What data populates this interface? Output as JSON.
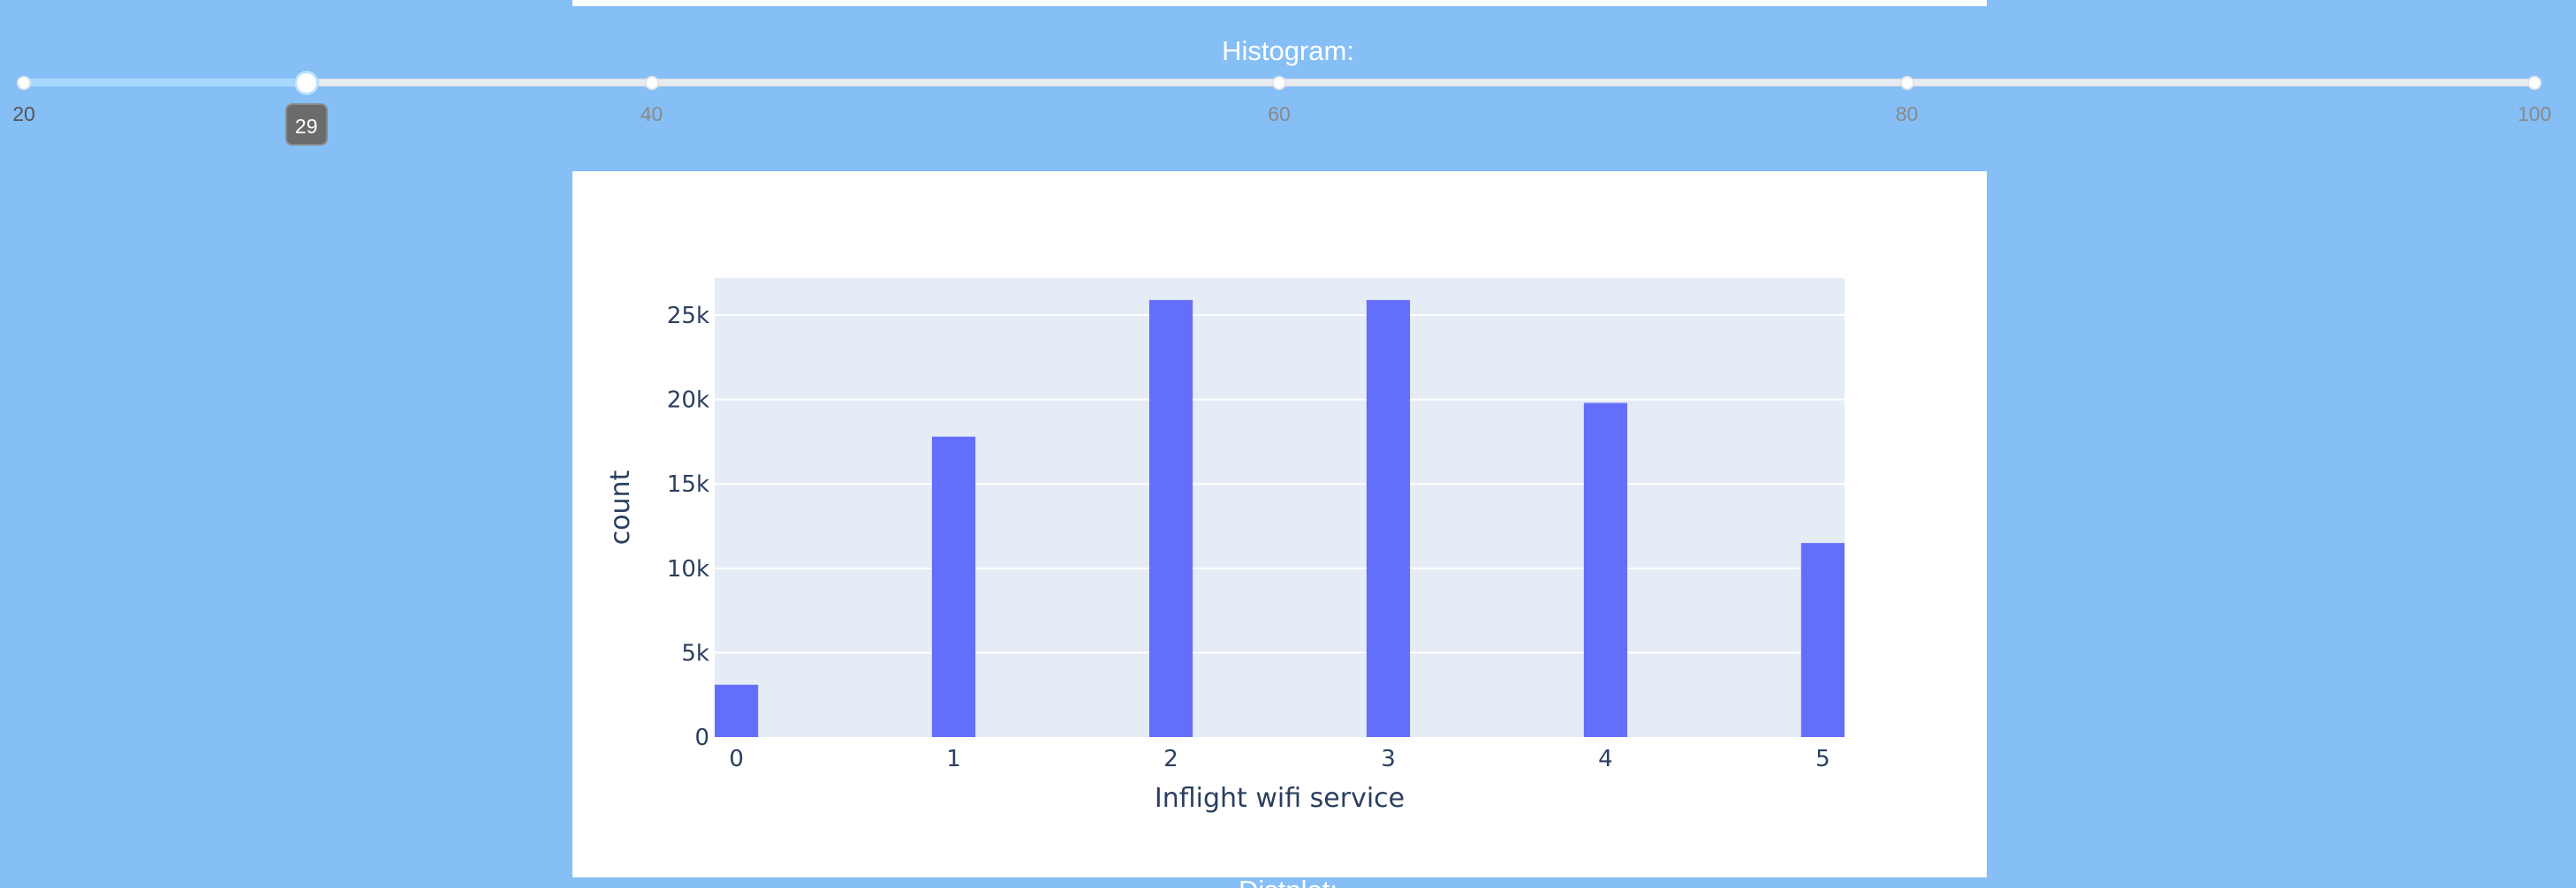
{
  "slider": {
    "title": "Histogram:",
    "min": 20,
    "max": 100,
    "value": 29,
    "value_label": "29",
    "marks": [
      {
        "value": 20,
        "label": "20"
      },
      {
        "value": 40,
        "label": "40"
      },
      {
        "value": 60,
        "label": "60"
      },
      {
        "value": 80,
        "label": "80"
      },
      {
        "value": 100,
        "label": "100"
      }
    ]
  },
  "bottom_text": "Distplot:",
  "colors": {
    "page_background": "#85bff6",
    "plot_background": "#e5ecf6",
    "bar": "#636efa",
    "axis_text": "#2a3f5f"
  },
  "chart_data": {
    "type": "bar",
    "categories": [
      "0",
      "1",
      "2",
      "3",
      "4",
      "5"
    ],
    "values": [
      3100,
      17800,
      25900,
      25900,
      19800,
      11500
    ],
    "xlabel": "Inflight wifi service",
    "ylabel": "count",
    "ylim": [
      0,
      27200
    ],
    "xlim": [
      -0.1,
      5.1
    ],
    "yticks": [
      0,
      5000,
      10000,
      15000,
      20000,
      25000
    ],
    "ytick_labels": [
      "0",
      "5k",
      "10k",
      "15k",
      "20k",
      "25k"
    ],
    "xticks": [
      0,
      1,
      2,
      3,
      4,
      5
    ],
    "xtick_labels": [
      "0",
      "1",
      "2",
      "3",
      "4",
      "5"
    ],
    "bar_width": 0.2,
    "grid": true,
    "legend": "none"
  }
}
